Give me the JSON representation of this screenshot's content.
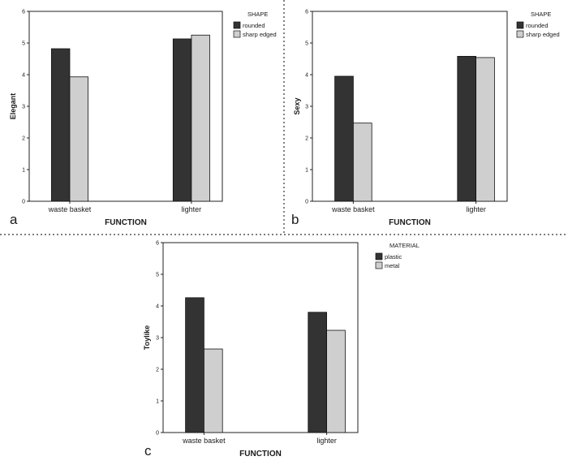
{
  "colors": {
    "dark": "#333333",
    "light": "#cfcfcf",
    "divider": "#333333"
  },
  "chart_data": [
    {
      "type": "bar",
      "panel_label": "a",
      "categories": [
        "waste basket",
        "lighter"
      ],
      "series": [
        {
          "name": "rounded",
          "values": [
            4.82,
            5.13
          ],
          "color": "#333333"
        },
        {
          "name": "sharp edged",
          "values": [
            3.93,
            5.25
          ],
          "color": "#cfcfcf"
        }
      ],
      "title": "",
      "xlabel": "FUNCTION",
      "ylabel": "Elegant",
      "ylim": [
        0,
        6
      ],
      "yticks": [
        0,
        1,
        2,
        3,
        4,
        5,
        6
      ],
      "legend_title": "SHAPE",
      "legend_position": "top-right",
      "grid": false
    },
    {
      "type": "bar",
      "panel_label": "b",
      "categories": [
        "waste basket",
        "lighter"
      ],
      "series": [
        {
          "name": "rounded",
          "values": [
            3.95,
            4.58
          ],
          "color": "#333333"
        },
        {
          "name": "sharp edged",
          "values": [
            2.47,
            4.54
          ],
          "color": "#cfcfcf"
        }
      ],
      "title": "",
      "xlabel": "FUNCTION",
      "ylabel": "Sexy",
      "ylim": [
        0,
        6
      ],
      "yticks": [
        0,
        1,
        2,
        3,
        4,
        5,
        6
      ],
      "legend_title": "SHAPE",
      "legend_position": "top-right",
      "grid": false
    },
    {
      "type": "bar",
      "panel_label": "c",
      "categories": [
        "waste basket",
        "lighter"
      ],
      "series": [
        {
          "name": "plastic",
          "values": [
            4.26,
            3.8
          ],
          "color": "#333333"
        },
        {
          "name": "metal",
          "values": [
            2.64,
            3.23
          ],
          "color": "#cfcfcf"
        }
      ],
      "title": "",
      "xlabel": "FUNCTION",
      "ylabel": "Toylike",
      "ylim": [
        0,
        6
      ],
      "yticks": [
        0,
        1,
        2,
        3,
        4,
        5,
        6
      ],
      "legend_title": "MATERIAL",
      "legend_position": "top-right",
      "grid": false
    }
  ]
}
